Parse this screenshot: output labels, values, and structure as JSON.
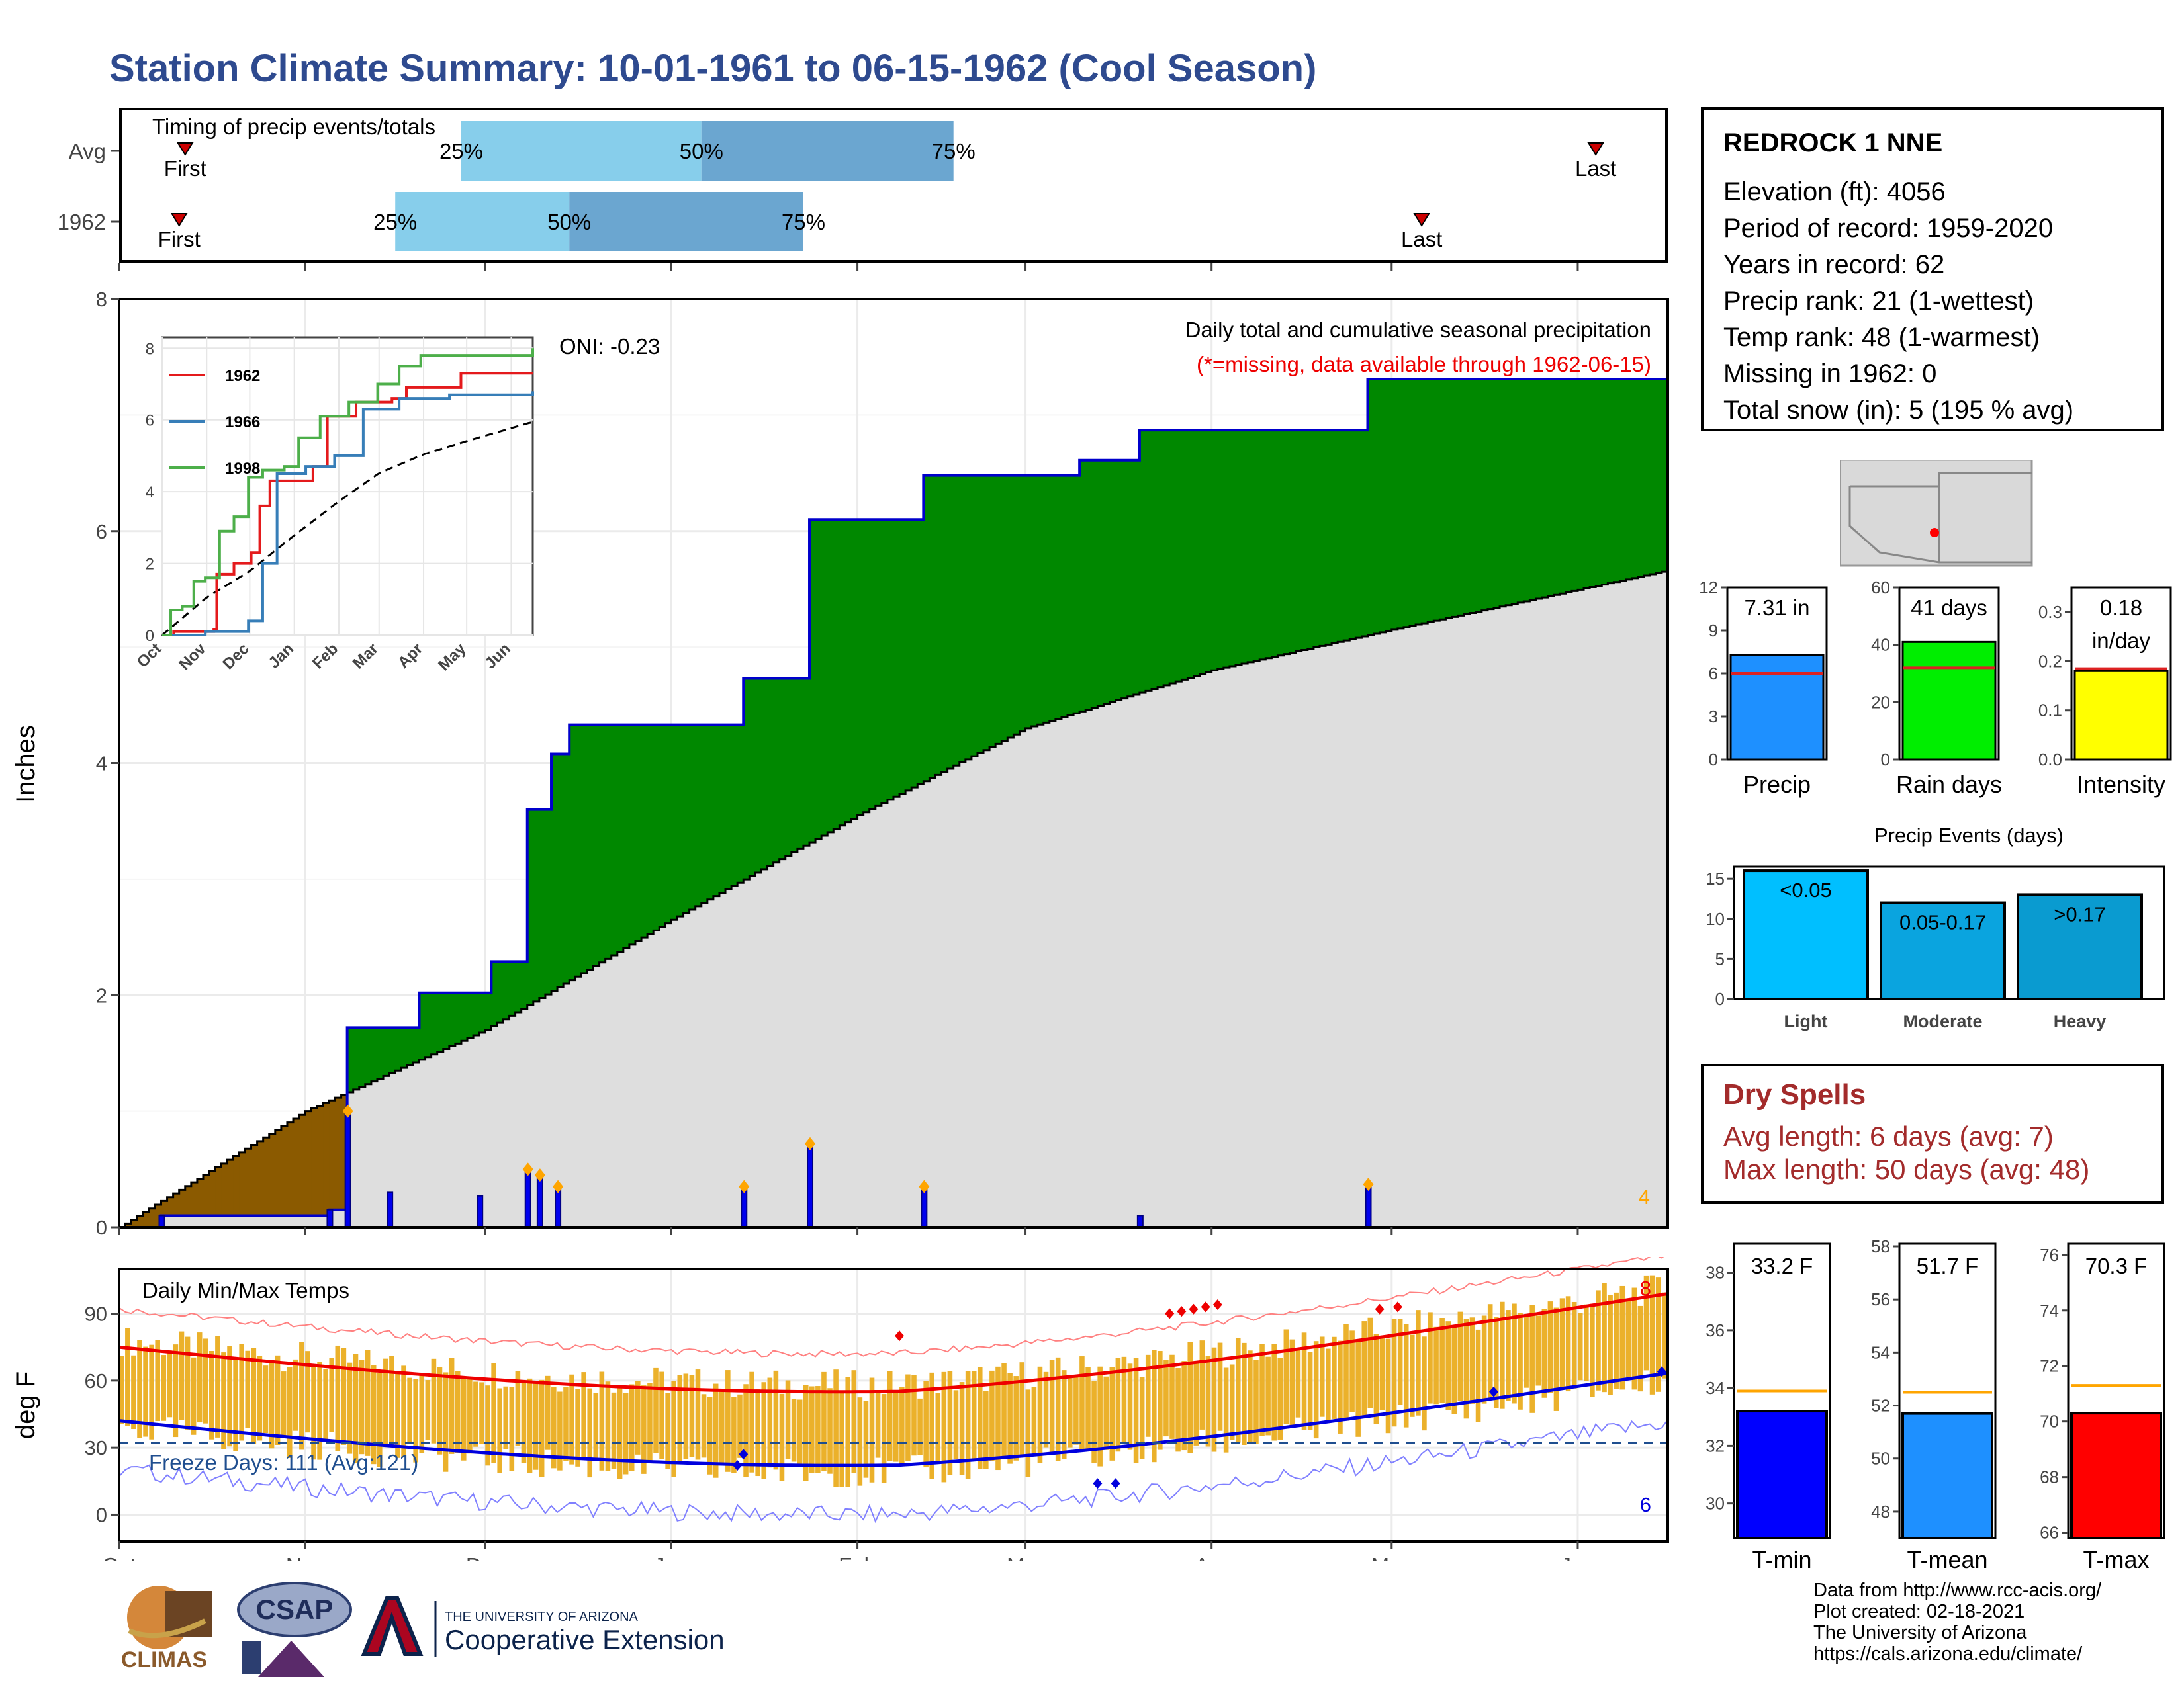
{
  "title": "Station Climate Summary: 10-01-1961 to 06-15-1962 (Cool Season)",
  "timing": {
    "title": "Timing of precip events/totals",
    "rows": [
      {
        "label": "Avg",
        "first_label": "First",
        "last_label": "Last",
        "p25": "25%",
        "p50": "50%",
        "p75": "75%"
      },
      {
        "label": "1962",
        "first_label": "First",
        "last_label": "Last",
        "p25": "25%",
        "p50": "50%",
        "p75": "75%"
      }
    ]
  },
  "main_chart": {
    "ylabel": "Inches",
    "note1": "Daily total and cumulative seasonal precipitation",
    "note2": "(*=missing, data available through 1962-06-15)",
    "oni": "ONI: -0.23",
    "count_label": "4",
    "y_ticks": [
      "0",
      "2",
      "4",
      "6",
      "8"
    ]
  },
  "inset": {
    "series": [
      "1962",
      "1966",
      "1998"
    ],
    "colors": [
      "#e41a1c",
      "#377eb8",
      "#4daf4a"
    ],
    "y_ticks": [
      "0",
      "2",
      "4",
      "6",
      "8"
    ],
    "months": [
      "Oct",
      "Nov",
      "Dec",
      "Jan",
      "Feb",
      "Mar",
      "Apr",
      "May",
      "Jun"
    ]
  },
  "temp_chart": {
    "ylabel": "deg F",
    "title": "Daily Min/Max Temps",
    "freeze": "Freeze Days: 111 (Avg:121)",
    "hi_count": "8",
    "lo_count": "6",
    "y_ticks": [
      "0",
      "30",
      "60",
      "90"
    ]
  },
  "months": [
    "Oct",
    "Nov",
    "Dec",
    "Jan",
    "Feb",
    "Mar",
    "Apr",
    "May",
    "Jun"
  ],
  "station": {
    "name": "REDROCK 1 NNE",
    "lines": [
      "Elevation (ft): 4056",
      "Period of record: 1959-2020",
      "Years in record: 62",
      "Precip rank: 21 (1-wettest)",
      "Temp rank: 48 (1-warmest)",
      "Missing in 1962: 0",
      "Total snow (in): 5 (195 % avg)"
    ]
  },
  "small_bars": [
    {
      "label": "Precip",
      "value_text": "7.31 in",
      "ticks": [
        "0",
        "3",
        "6",
        "9",
        "12"
      ],
      "color": "#1e90ff"
    },
    {
      "label": "Rain days",
      "value_text": "41 days",
      "ticks": [
        "0",
        "20",
        "40",
        "60"
      ],
      "color": "#00ee00"
    },
    {
      "label": "Intensity",
      "value_text": "0.18",
      "value_text2": "in/day",
      "ticks": [
        "0.0",
        "0.1",
        "0.2",
        "0.3"
      ],
      "color": "#ffff00"
    }
  ],
  "events": {
    "title": "Precip Events (days)",
    "ticks": [
      "0",
      "5",
      "10",
      "15"
    ],
    "bars": [
      {
        "label": "Light",
        "text": "<0.05",
        "color": "#00bfff"
      },
      {
        "label": "Moderate",
        "text": "0.05-0.17",
        "color": "#0aa4df"
      },
      {
        "label": "Heavy",
        "text": ">0.17",
        "color": "#0a9bd0"
      }
    ]
  },
  "dry": {
    "title": "Dry Spells",
    "avg": "Avg length: 6 days (avg: 7)",
    "max": "Max length: 50 days (avg: 48)"
  },
  "temp_bars": [
    {
      "label": "T-min",
      "value_text": "33.2 F",
      "ticks": [
        "30",
        "32",
        "34",
        "36",
        "38"
      ],
      "color": "#0000ff"
    },
    {
      "label": "T-mean",
      "value_text": "51.7 F",
      "ticks": [
        "48",
        "50",
        "52",
        "54",
        "56",
        "58"
      ],
      "color": "#1e90ff"
    },
    {
      "label": "T-max",
      "value_text": "70.3 F",
      "ticks": [
        "66",
        "68",
        "70",
        "72",
        "74",
        "76"
      ],
      "color": "#ff0000"
    }
  ],
  "footer": [
    "Data from http://www.rcc-acis.org/",
    "Plot created: 02-18-2021",
    "The University of Arizona",
    "https://cals.arizona.edu/climate/"
  ],
  "logos": {
    "climas": "CLIMAS",
    "csap": "CSAP",
    "ua_small": "THE UNIVERSITY OF ARIZONA",
    "ua_big": "Cooperative Extension"
  },
  "chart_data": {
    "type": "area",
    "title": "Daily total and cumulative seasonal precipitation",
    "ylabel": "Inches",
    "ylim": [
      0,
      8
    ],
    "x_dates": [
      "1961-10-01",
      "1961-10-08",
      "1961-10-20",
      "1961-11-05",
      "1961-11-08",
      "1961-11-20",
      "1961-12-02",
      "1961-12-08",
      "1961-12-12",
      "1961-12-15",
      "1962-01-13",
      "1962-01-24",
      "1962-02-12",
      "1962-03-10",
      "1962-03-20",
      "1962-04-27",
      "1962-06-15"
    ],
    "series": [
      {
        "name": "1962",
        "values": [
          0.0,
          0.1,
          0.1,
          0.15,
          1.72,
          2.02,
          2.29,
          3.6,
          4.08,
          4.33,
          4.73,
          6.1,
          6.48,
          6.61,
          6.87,
          7.31,
          7.31
        ]
      }
    ],
    "average_cumulative": {
      "x_dates": [
        "1961-10-01",
        "1961-11-01",
        "1961-12-01",
        "1962-01-01",
        "1962-02-01",
        "1962-03-01",
        "1962-04-01",
        "1962-05-01",
        "1962-06-15"
      ],
      "values": [
        0.0,
        1.0,
        1.7,
        2.65,
        3.55,
        4.3,
        4.8,
        5.15,
        5.65
      ]
    },
    "daily_events": [
      {
        "date": "1961-10-08",
        "value": 0.1
      },
      {
        "date": "1961-11-05",
        "value": 0.15
      },
      {
        "date": "1961-11-08",
        "value": 1.0
      },
      {
        "date": "1961-11-15",
        "value": 0.3
      },
      {
        "date": "1961-11-30",
        "value": 0.27
      },
      {
        "date": "1961-12-08",
        "value": 0.5
      },
      {
        "date": "1961-12-10",
        "value": 0.45
      },
      {
        "date": "1961-12-13",
        "value": 0.35
      },
      {
        "date": "1962-01-13",
        "value": 0.35
      },
      {
        "date": "1962-01-24",
        "value": 0.72
      },
      {
        "date": "1962-02-12",
        "value": 0.35
      },
      {
        "date": "1962-03-20",
        "value": 0.1
      },
      {
        "date": "1962-04-27",
        "value": 0.37
      }
    ]
  }
}
